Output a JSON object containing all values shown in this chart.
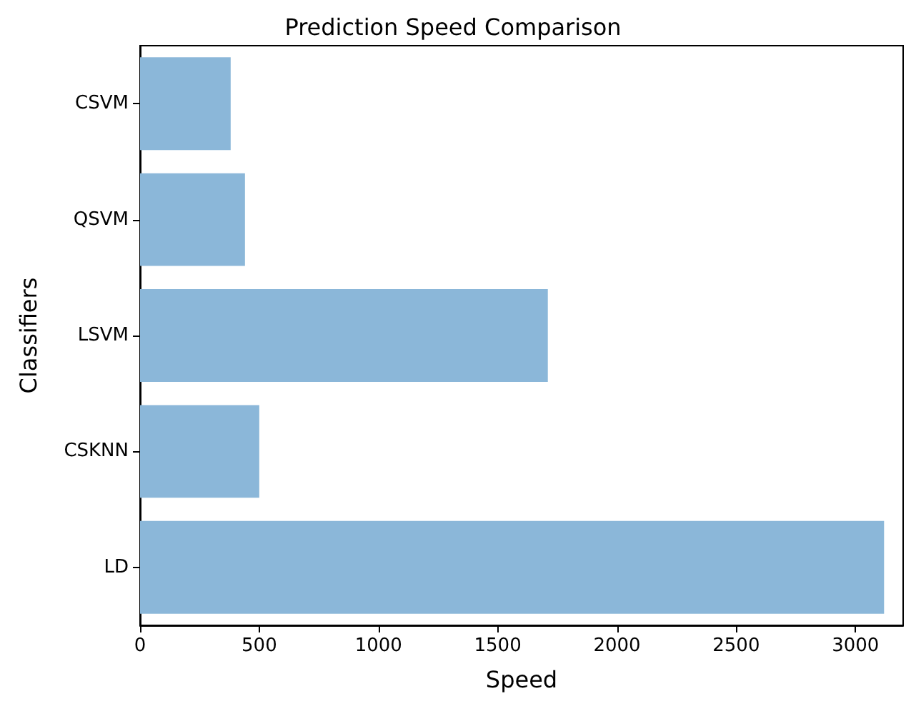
{
  "chart_data": {
    "type": "bar",
    "orientation": "horizontal",
    "title": "Prediction Speed Comparison",
    "xlabel": "Speed",
    "ylabel": "Classifiers",
    "categories": [
      "CSVM",
      "QSVM",
      "LSVM",
      "CSKNN",
      "LD"
    ],
    "values": [
      380,
      440,
      1710,
      500,
      3120
    ],
    "color": "#8bb7d9",
    "xlim": [
      0,
      3200
    ],
    "xticks": [
      0,
      500,
      1000,
      1500,
      2000,
      2500,
      3000
    ],
    "grid": false
  }
}
